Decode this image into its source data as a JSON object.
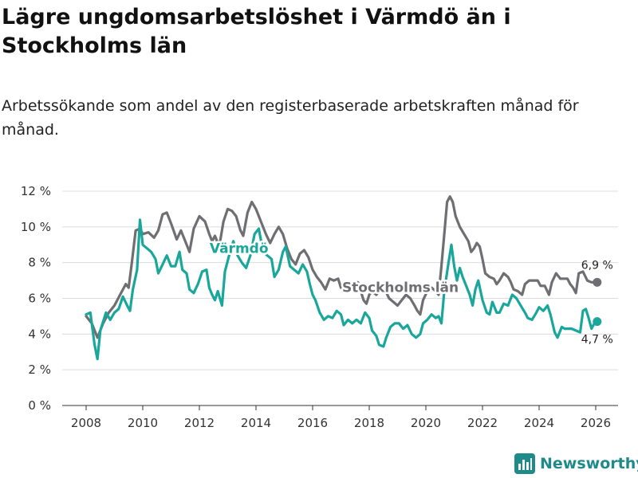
{
  "title": "Lägre ungdomsarbetslöshet i Värmdö än i Stockholms län",
  "subtitle": "Arbetssökande som andel av den registerbaserade arbetskraften månad för månad.",
  "brand": {
    "name": "Newsworthy",
    "icon": "bar-chart-logo-icon",
    "color": "#1f8a8a"
  },
  "chart_data": {
    "type": "line",
    "title": "Lägre ungdomsarbetslöshet i Värmdö än i Stockholms län",
    "xlabel": "",
    "ylabel": "",
    "xlim": [
      2007.5,
      2026.5
    ],
    "ylim": [
      0,
      12
    ],
    "x_ticks": [
      2008,
      2010,
      2012,
      2014,
      2016,
      2018,
      2020,
      2022,
      2024,
      2026
    ],
    "x_tick_labels": [
      "2008",
      "2010",
      "2012",
      "2014",
      "2016",
      "2018",
      "2020",
      "2022",
      "2024",
      "2026"
    ],
    "y_ticks": [
      0,
      2,
      4,
      6,
      8,
      10,
      12
    ],
    "y_tick_labels": [
      "0 %",
      "2 %",
      "4 %",
      "6 %",
      "8 %",
      "10 %",
      "12 %"
    ],
    "grid": true,
    "series": [
      {
        "name": "Stockholms län",
        "color": "#6e6e73",
        "end_label": "6,9 %",
        "points": [
          [
            2008.0,
            5.0
          ],
          [
            2008.2,
            4.6
          ],
          [
            2008.4,
            3.8
          ],
          [
            2008.6,
            4.6
          ],
          [
            2008.8,
            5.2
          ],
          [
            2009.0,
            5.6
          ],
          [
            2009.2,
            6.2
          ],
          [
            2009.4,
            6.8
          ],
          [
            2009.5,
            6.6
          ],
          [
            2009.6,
            7.8
          ],
          [
            2009.75,
            9.8
          ],
          [
            2009.9,
            9.9
          ],
          [
            2010.0,
            9.6
          ],
          [
            2010.2,
            9.7
          ],
          [
            2010.4,
            9.4
          ],
          [
            2010.55,
            9.8
          ],
          [
            2010.7,
            10.7
          ],
          [
            2010.85,
            10.8
          ],
          [
            2011.0,
            10.2
          ],
          [
            2011.2,
            9.3
          ],
          [
            2011.35,
            9.8
          ],
          [
            2011.5,
            9.2
          ],
          [
            2011.65,
            8.6
          ],
          [
            2011.8,
            9.9
          ],
          [
            2012.0,
            10.6
          ],
          [
            2012.2,
            10.3
          ],
          [
            2012.35,
            9.6
          ],
          [
            2012.45,
            9.2
          ],
          [
            2012.55,
            9.5
          ],
          [
            2012.7,
            8.9
          ],
          [
            2012.85,
            10.3
          ],
          [
            2013.0,
            11.0
          ],
          [
            2013.15,
            10.9
          ],
          [
            2013.3,
            10.6
          ],
          [
            2013.45,
            9.8
          ],
          [
            2013.55,
            9.5
          ],
          [
            2013.7,
            10.8
          ],
          [
            2013.85,
            11.4
          ],
          [
            2014.0,
            11.0
          ],
          [
            2014.2,
            10.2
          ],
          [
            2014.35,
            9.6
          ],
          [
            2014.5,
            9.1
          ],
          [
            2014.65,
            9.6
          ],
          [
            2014.8,
            10.0
          ],
          [
            2014.95,
            9.6
          ],
          [
            2015.1,
            8.8
          ],
          [
            2015.25,
            8.2
          ],
          [
            2015.4,
            7.9
          ],
          [
            2015.55,
            8.5
          ],
          [
            2015.7,
            8.7
          ],
          [
            2015.85,
            8.3
          ],
          [
            2016.0,
            7.6
          ],
          [
            2016.15,
            7.2
          ],
          [
            2016.3,
            6.9
          ],
          [
            2016.45,
            6.5
          ],
          [
            2016.6,
            7.1
          ],
          [
            2016.75,
            7.0
          ],
          [
            2016.9,
            7.1
          ],
          [
            2017.0,
            6.6
          ],
          [
            2017.15,
            6.6
          ],
          [
            2017.3,
            6.4
          ],
          [
            2017.45,
            6.9
          ],
          [
            2017.6,
            6.9
          ],
          [
            2017.7,
            6.4
          ],
          [
            2017.8,
            5.9
          ],
          [
            2017.9,
            5.7
          ],
          [
            2018.0,
            6.2
          ],
          [
            2018.1,
            6.4
          ],
          [
            2018.25,
            6.2
          ],
          [
            2018.4,
            6.6
          ],
          [
            2018.55,
            6.5
          ],
          [
            2018.7,
            6.0
          ],
          [
            2018.85,
            5.8
          ],
          [
            2019.0,
            5.6
          ],
          [
            2019.15,
            5.9
          ],
          [
            2019.3,
            6.2
          ],
          [
            2019.45,
            6.0
          ],
          [
            2019.6,
            5.6
          ],
          [
            2019.7,
            5.3
          ],
          [
            2019.8,
            5.1
          ],
          [
            2019.9,
            5.9
          ],
          [
            2020.05,
            6.4
          ],
          [
            2020.2,
            6.6
          ],
          [
            2020.35,
            6.4
          ],
          [
            2020.45,
            6.2
          ],
          [
            2020.55,
            7.8
          ],
          [
            2020.65,
            9.6
          ],
          [
            2020.75,
            11.4
          ],
          [
            2020.85,
            11.7
          ],
          [
            2020.95,
            11.4
          ],
          [
            2021.05,
            10.6
          ],
          [
            2021.2,
            10.0
          ],
          [
            2021.35,
            9.6
          ],
          [
            2021.5,
            9.2
          ],
          [
            2021.6,
            8.6
          ],
          [
            2021.7,
            8.8
          ],
          [
            2021.8,
            9.1
          ],
          [
            2021.9,
            8.9
          ],
          [
            2022.0,
            8.2
          ],
          [
            2022.1,
            7.4
          ],
          [
            2022.25,
            7.2
          ],
          [
            2022.4,
            7.1
          ],
          [
            2022.5,
            6.8
          ],
          [
            2022.6,
            7.0
          ],
          [
            2022.75,
            7.4
          ],
          [
            2022.9,
            7.2
          ],
          [
            2023.0,
            6.9
          ],
          [
            2023.1,
            6.5
          ],
          [
            2023.25,
            6.4
          ],
          [
            2023.4,
            6.2
          ],
          [
            2023.5,
            6.8
          ],
          [
            2023.65,
            7.0
          ],
          [
            2023.8,
            7.0
          ],
          [
            2023.95,
            7.0
          ],
          [
            2024.05,
            6.7
          ],
          [
            2024.2,
            6.7
          ],
          [
            2024.35,
            6.2
          ],
          [
            2024.45,
            6.9
          ],
          [
            2024.6,
            7.4
          ],
          [
            2024.75,
            7.1
          ],
          [
            2024.9,
            7.1
          ],
          [
            2025.0,
            7.1
          ],
          [
            2025.1,
            6.8
          ],
          [
            2025.2,
            6.6
          ],
          [
            2025.3,
            6.3
          ],
          [
            2025.4,
            7.4
          ],
          [
            2025.55,
            7.5
          ],
          [
            2025.7,
            7.0
          ],
          [
            2025.85,
            6.9
          ],
          [
            2026.05,
            6.9
          ]
        ]
      },
      {
        "name": "Värmdö",
        "color": "#1aa79b",
        "end_label": "4,7 %",
        "points": [
          [
            2008.0,
            5.1
          ],
          [
            2008.15,
            5.2
          ],
          [
            2008.3,
            3.4
          ],
          [
            2008.4,
            2.6
          ],
          [
            2008.5,
            4.2
          ],
          [
            2008.7,
            5.2
          ],
          [
            2008.85,
            4.8
          ],
          [
            2009.0,
            5.2
          ],
          [
            2009.15,
            5.4
          ],
          [
            2009.3,
            6.1
          ],
          [
            2009.45,
            5.6
          ],
          [
            2009.55,
            5.3
          ],
          [
            2009.65,
            6.5
          ],
          [
            2009.8,
            7.6
          ],
          [
            2009.9,
            10.4
          ],
          [
            2010.0,
            9.0
          ],
          [
            2010.15,
            8.8
          ],
          [
            2010.3,
            8.6
          ],
          [
            2010.45,
            8.2
          ],
          [
            2010.55,
            7.4
          ],
          [
            2010.7,
            7.9
          ],
          [
            2010.85,
            8.4
          ],
          [
            2011.0,
            7.8
          ],
          [
            2011.15,
            7.8
          ],
          [
            2011.3,
            8.6
          ],
          [
            2011.4,
            7.6
          ],
          [
            2011.55,
            7.4
          ],
          [
            2011.65,
            6.5
          ],
          [
            2011.8,
            6.3
          ],
          [
            2011.95,
            6.8
          ],
          [
            2012.1,
            7.5
          ],
          [
            2012.25,
            7.6
          ],
          [
            2012.35,
            6.6
          ],
          [
            2012.45,
            6.2
          ],
          [
            2012.55,
            5.9
          ],
          [
            2012.65,
            6.4
          ],
          [
            2012.8,
            5.6
          ],
          [
            2012.9,
            7.5
          ],
          [
            2013.05,
            8.4
          ],
          [
            2013.2,
            9.2
          ],
          [
            2013.35,
            8.4
          ],
          [
            2013.5,
            8.0
          ],
          [
            2013.65,
            7.7
          ],
          [
            2013.8,
            8.4
          ],
          [
            2013.95,
            9.6
          ],
          [
            2014.1,
            9.9
          ],
          [
            2014.25,
            8.6
          ],
          [
            2014.4,
            8.4
          ],
          [
            2014.55,
            8.2
          ],
          [
            2014.65,
            7.2
          ],
          [
            2014.8,
            7.6
          ],
          [
            2014.95,
            8.6
          ],
          [
            2015.05,
            8.9
          ],
          [
            2015.2,
            7.8
          ],
          [
            2015.35,
            7.6
          ],
          [
            2015.5,
            7.4
          ],
          [
            2015.65,
            7.9
          ],
          [
            2015.8,
            7.5
          ],
          [
            2015.9,
            6.8
          ],
          [
            2016.0,
            6.2
          ],
          [
            2016.1,
            5.9
          ],
          [
            2016.25,
            5.2
          ],
          [
            2016.4,
            4.8
          ],
          [
            2016.55,
            5.0
          ],
          [
            2016.7,
            4.9
          ],
          [
            2016.85,
            5.3
          ],
          [
            2017.0,
            5.1
          ],
          [
            2017.1,
            4.5
          ],
          [
            2017.25,
            4.8
          ],
          [
            2017.4,
            4.6
          ],
          [
            2017.55,
            4.8
          ],
          [
            2017.7,
            4.6
          ],
          [
            2017.85,
            5.2
          ],
          [
            2018.0,
            4.9
          ],
          [
            2018.1,
            4.2
          ],
          [
            2018.25,
            3.9
          ],
          [
            2018.35,
            3.4
          ],
          [
            2018.5,
            3.3
          ],
          [
            2018.6,
            3.8
          ],
          [
            2018.75,
            4.4
          ],
          [
            2018.9,
            4.6
          ],
          [
            2019.05,
            4.6
          ],
          [
            2019.2,
            4.3
          ],
          [
            2019.35,
            4.5
          ],
          [
            2019.5,
            4.0
          ],
          [
            2019.65,
            3.8
          ],
          [
            2019.8,
            4.0
          ],
          [
            2019.9,
            4.6
          ],
          [
            2020.05,
            4.8
          ],
          [
            2020.2,
            5.1
          ],
          [
            2020.35,
            4.9
          ],
          [
            2020.45,
            5.0
          ],
          [
            2020.55,
            4.6
          ],
          [
            2020.65,
            6.4
          ],
          [
            2020.8,
            8.0
          ],
          [
            2020.9,
            9.0
          ],
          [
            2021.0,
            7.8
          ],
          [
            2021.1,
            7.0
          ],
          [
            2021.2,
            7.7
          ],
          [
            2021.3,
            7.2
          ],
          [
            2021.4,
            6.8
          ],
          [
            2021.55,
            6.2
          ],
          [
            2021.65,
            5.6
          ],
          [
            2021.75,
            6.5
          ],
          [
            2021.85,
            7.0
          ],
          [
            2022.0,
            5.9
          ],
          [
            2022.15,
            5.2
          ],
          [
            2022.25,
            5.1
          ],
          [
            2022.35,
            5.8
          ],
          [
            2022.5,
            5.2
          ],
          [
            2022.6,
            5.2
          ],
          [
            2022.75,
            5.7
          ],
          [
            2022.9,
            5.6
          ],
          [
            2023.05,
            6.2
          ],
          [
            2023.2,
            6.0
          ],
          [
            2023.35,
            5.6
          ],
          [
            2023.5,
            5.2
          ],
          [
            2023.6,
            4.9
          ],
          [
            2023.75,
            4.8
          ],
          [
            2023.9,
            5.2
          ],
          [
            2024.0,
            5.5
          ],
          [
            2024.15,
            5.3
          ],
          [
            2024.3,
            5.6
          ],
          [
            2024.4,
            5.1
          ],
          [
            2024.55,
            4.1
          ],
          [
            2024.65,
            3.8
          ],
          [
            2024.8,
            4.4
          ],
          [
            2024.9,
            4.3
          ],
          [
            2025.0,
            4.3
          ],
          [
            2025.15,
            4.3
          ],
          [
            2025.3,
            4.2
          ],
          [
            2025.45,
            4.1
          ],
          [
            2025.55,
            5.3
          ],
          [
            2025.65,
            5.4
          ],
          [
            2025.75,
            4.9
          ],
          [
            2025.85,
            4.3
          ],
          [
            2025.95,
            4.6
          ],
          [
            2026.05,
            4.7
          ]
        ]
      }
    ]
  }
}
